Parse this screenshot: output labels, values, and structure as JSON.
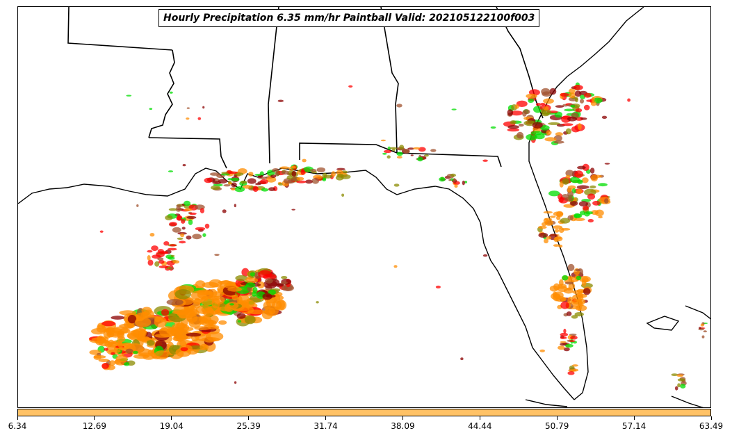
{
  "title": "Hourly Precipitation 6.35 mm/hr Paintball Valid: 202105122100f003",
  "colorbar": {
    "color": "#ffc266",
    "ticks": [
      "6.34",
      "12.69",
      "19.04",
      "25.39",
      "31.74",
      "38.09",
      "44.44",
      "50.79",
      "57.14",
      "63.49"
    ]
  },
  "palette": {
    "dark_red": "#8b0000",
    "red": "#ff0000",
    "orange": "#ff8c00",
    "green": "#00dd00",
    "olive": "#8b8b00",
    "brown": "#a0522d"
  }
}
